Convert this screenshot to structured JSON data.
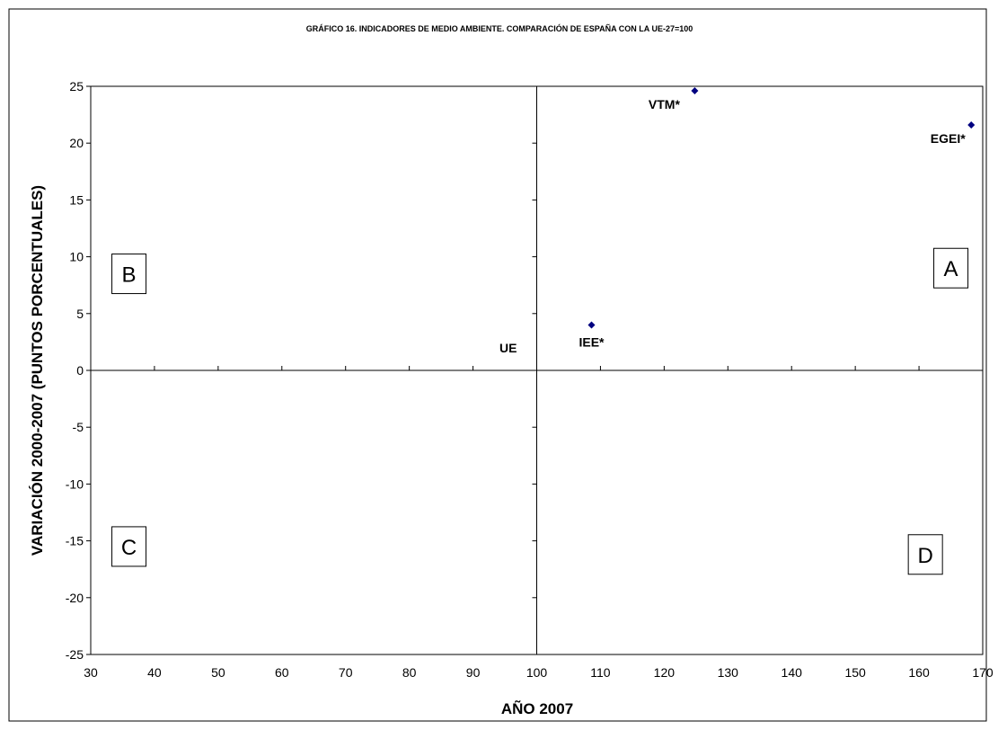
{
  "chart_data": {
    "type": "scatter",
    "title": "GRÁFICO 16. INDICADORES DE  MEDIO AMBIENTE.  COMPARACIÓN DE ESPAÑA CON LA UE-27=100",
    "xlabel": "AÑO 2007",
    "ylabel": "VARIACIÓN 2000-2007 (PUNTOS PORCENTUALES)",
    "xlim": [
      30,
      170
    ],
    "ylim": [
      -25,
      25
    ],
    "x_ticks": [
      30,
      40,
      50,
      60,
      70,
      80,
      90,
      100,
      110,
      120,
      130,
      140,
      150,
      160,
      170
    ],
    "y_ticks": [
      25,
      20,
      15,
      10,
      5,
      0,
      -5,
      -10,
      -15,
      -20,
      -25
    ],
    "grid": false,
    "reference_lines": {
      "x": 100,
      "y": 0
    },
    "marker_color": "#000080",
    "points": [
      {
        "label": "VTM*",
        "x": 124.8,
        "y": 24.6
      },
      {
        "label": "EGEI*",
        "x": 168.2,
        "y": 21.6
      },
      {
        "label": "IEE*",
        "x": 108.6,
        "y": 4.0
      }
    ],
    "reference_label": "UE",
    "quadrant_labels": [
      "A",
      "B",
      "C",
      "D"
    ]
  }
}
